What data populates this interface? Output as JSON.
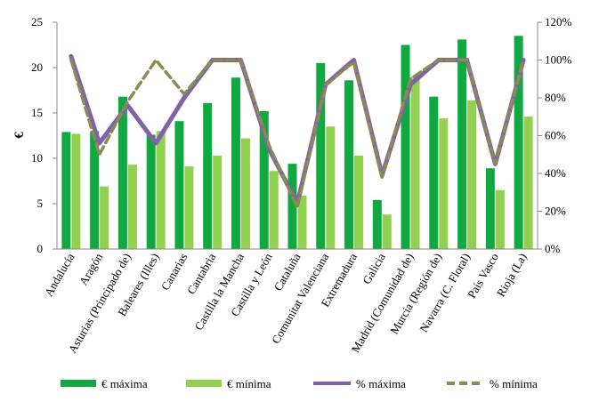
{
  "chart_data": {
    "type": "bar",
    "title": "",
    "xlabel": "",
    "ylabel": "€",
    "ylim": [
      0,
      25
    ],
    "y_ticks": [
      "0",
      "5",
      "10",
      "15",
      "20",
      "25"
    ],
    "y2lim": [
      0,
      120
    ],
    "y2_ticks": [
      "0%",
      "20%",
      "40%",
      "60%",
      "80%",
      "100%",
      "120%"
    ],
    "grid": false,
    "legend_position": "bottom",
    "categories": [
      "Andalucía",
      "Aragón",
      "Asturias (Principado de)",
      "Baleares (Illes)",
      "Canarias",
      "Cantabria",
      "Castilla la Mancha",
      "Castilla y León",
      "Cataluña",
      "Comunitat Valenciana",
      "Extremadura",
      "Galicia",
      "Madrid (Comunidad de)",
      "Murcia (Región de)",
      "Navarra (C. Floral)",
      "País Vasco",
      "Rioja (La)"
    ],
    "series": [
      {
        "name": "€ máxima",
        "kind": "bar",
        "axis": "left",
        "color": "#10a940",
        "values": [
          12.9,
          13.0,
          16.8,
          12.6,
          14.1,
          16.1,
          18.9,
          15.2,
          9.4,
          20.5,
          18.6,
          5.4,
          22.5,
          16.8,
          23.1,
          8.9,
          23.5
        ]
      },
      {
        "name": "€ mínima",
        "kind": "bar",
        "axis": "left",
        "color": "#92d050",
        "values": [
          12.7,
          6.9,
          9.3,
          13.0,
          9.1,
          10.3,
          12.2,
          8.6,
          5.9,
          13.5,
          10.3,
          3.8,
          19.0,
          14.4,
          16.4,
          6.5,
          14.6
        ]
      },
      {
        "name": "% máxima",
        "kind": "line",
        "axis": "right",
        "color": "#7f62a8",
        "dash": false,
        "values": [
          102,
          56,
          76,
          56,
          80,
          100,
          100,
          53,
          24,
          87,
          100,
          39,
          87,
          100,
          100,
          45,
          100
        ]
      },
      {
        "name": "% mínima",
        "kind": "line",
        "axis": "right",
        "color": "#8c8a53",
        "dash": true,
        "values": [
          100,
          50,
          78,
          100,
          82,
          100,
          100,
          55,
          22,
          87,
          99,
          38,
          90,
          100,
          100,
          45,
          100
        ]
      }
    ]
  }
}
